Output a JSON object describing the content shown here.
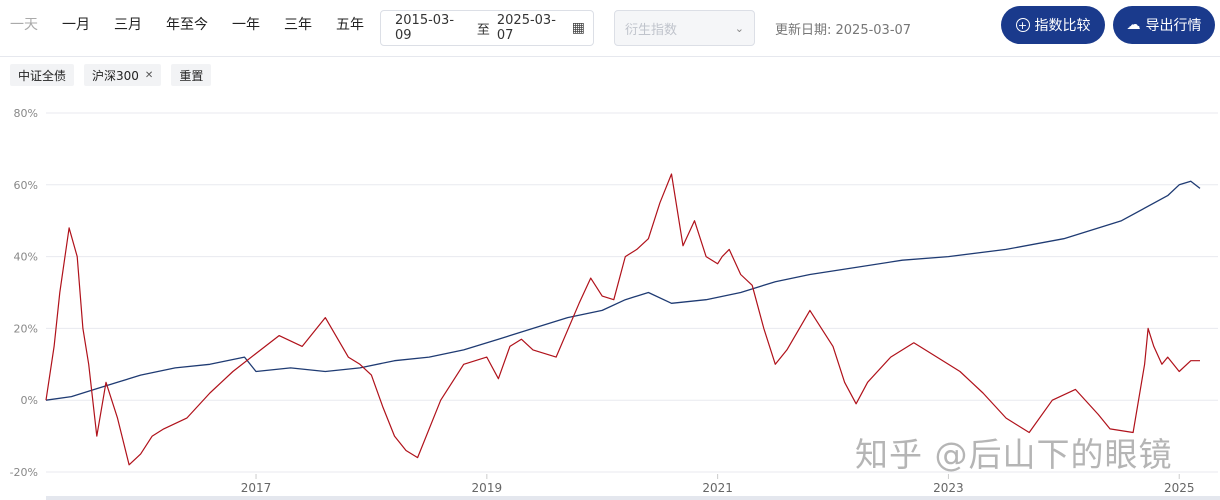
{
  "toolbar": {
    "ranges": [
      "一天",
      "一月",
      "三月",
      "年至今",
      "一年",
      "三年",
      "五年"
    ],
    "date_start": "2015-03-09",
    "date_sep": "至",
    "date_end": "2025-03-07",
    "derived_placeholder": "衍生指数",
    "update_date": "更新日期: 2025-03-07",
    "compare_label": "指数比较",
    "export_label": "导出行情"
  },
  "tags": {
    "index_a": "中证全债",
    "index_b": "沪深300",
    "reset": "重置"
  },
  "watermark": "知乎 @后山下的眼镜",
  "chart_data": {
    "type": "line",
    "ylim": [
      -20,
      80
    ],
    "y_ticks": [
      "80%",
      "60%",
      "40%",
      "20%",
      "0%",
      "-20%"
    ],
    "x_ticks": [
      "2017",
      "2019",
      "2021",
      "2023",
      "2025"
    ],
    "x_range": [
      2015.18,
      2025.18
    ],
    "grid": true,
    "colors": {
      "bond": "#1f3b73",
      "csi300": "#b0121b"
    },
    "series": [
      {
        "key": "bond",
        "x": [
          2015.18,
          2015.4,
          2015.6,
          2015.8,
          2016.0,
          2016.3,
          2016.6,
          2016.9,
          2017.0,
          2017.3,
          2017.6,
          2017.9,
          2018.2,
          2018.5,
          2018.8,
          2019.1,
          2019.4,
          2019.7,
          2020.0,
          2020.2,
          2020.4,
          2020.6,
          2020.9,
          2021.2,
          2021.5,
          2021.8,
          2022.2,
          2022.6,
          2023.0,
          2023.5,
          2024.0,
          2024.5,
          2024.9,
          2025.0,
          2025.1,
          2025.18
        ],
        "values": [
          0,
          1,
          3,
          5,
          7,
          9,
          10,
          12,
          8,
          9,
          8,
          9,
          11,
          12,
          14,
          17,
          20,
          23,
          25,
          28,
          30,
          27,
          28,
          30,
          33,
          35,
          37,
          39,
          40,
          42,
          45,
          50,
          57,
          60,
          61,
          59
        ]
      },
      {
        "key": "csi300",
        "x": [
          2015.18,
          2015.25,
          2015.3,
          2015.38,
          2015.45,
          2015.5,
          2015.55,
          2015.62,
          2015.7,
          2015.8,
          2015.9,
          2016.0,
          2016.1,
          2016.2,
          2016.4,
          2016.6,
          2016.8,
          2017.0,
          2017.2,
          2017.4,
          2017.6,
          2017.8,
          2017.9,
          2018.0,
          2018.1,
          2018.2,
          2018.3,
          2018.4,
          2018.6,
          2018.8,
          2019.0,
          2019.1,
          2019.2,
          2019.3,
          2019.4,
          2019.6,
          2019.8,
          2019.9,
          2020.0,
          2020.1,
          2020.2,
          2020.3,
          2020.4,
          2020.5,
          2020.6,
          2020.7,
          2020.8,
          2020.9,
          2021.0,
          2021.04,
          2021.1,
          2021.2,
          2021.3,
          2021.4,
          2021.5,
          2021.6,
          2021.8,
          2022.0,
          2022.1,
          2022.2,
          2022.3,
          2022.5,
          2022.7,
          2022.8,
          2023.0,
          2023.1,
          2023.3,
          2023.5,
          2023.7,
          2023.9,
          2024.1,
          2024.3,
          2024.4,
          2024.6,
          2024.7,
          2024.73,
          2024.78,
          2024.85,
          2024.9,
          2025.0,
          2025.1,
          2025.18
        ],
        "values": [
          0,
          15,
          30,
          48,
          40,
          20,
          10,
          -10,
          5,
          -5,
          -18,
          -15,
          -10,
          -8,
          -5,
          2,
          8,
          13,
          18,
          15,
          23,
          12,
          10,
          7,
          -2,
          -10,
          -14,
          -16,
          0,
          10,
          12,
          6,
          15,
          17,
          14,
          12,
          27,
          34,
          29,
          28,
          40,
          42,
          45,
          55,
          63,
          43,
          50,
          40,
          38,
          40,
          42,
          35,
          32,
          20,
          10,
          14,
          25,
          15,
          5,
          -1,
          5,
          12,
          16,
          14,
          10,
          8,
          2,
          -5,
          -9,
          0,
          3,
          -4,
          -8,
          -9,
          10,
          20,
          15,
          10,
          12,
          8,
          11,
          11
        ]
      }
    ]
  }
}
